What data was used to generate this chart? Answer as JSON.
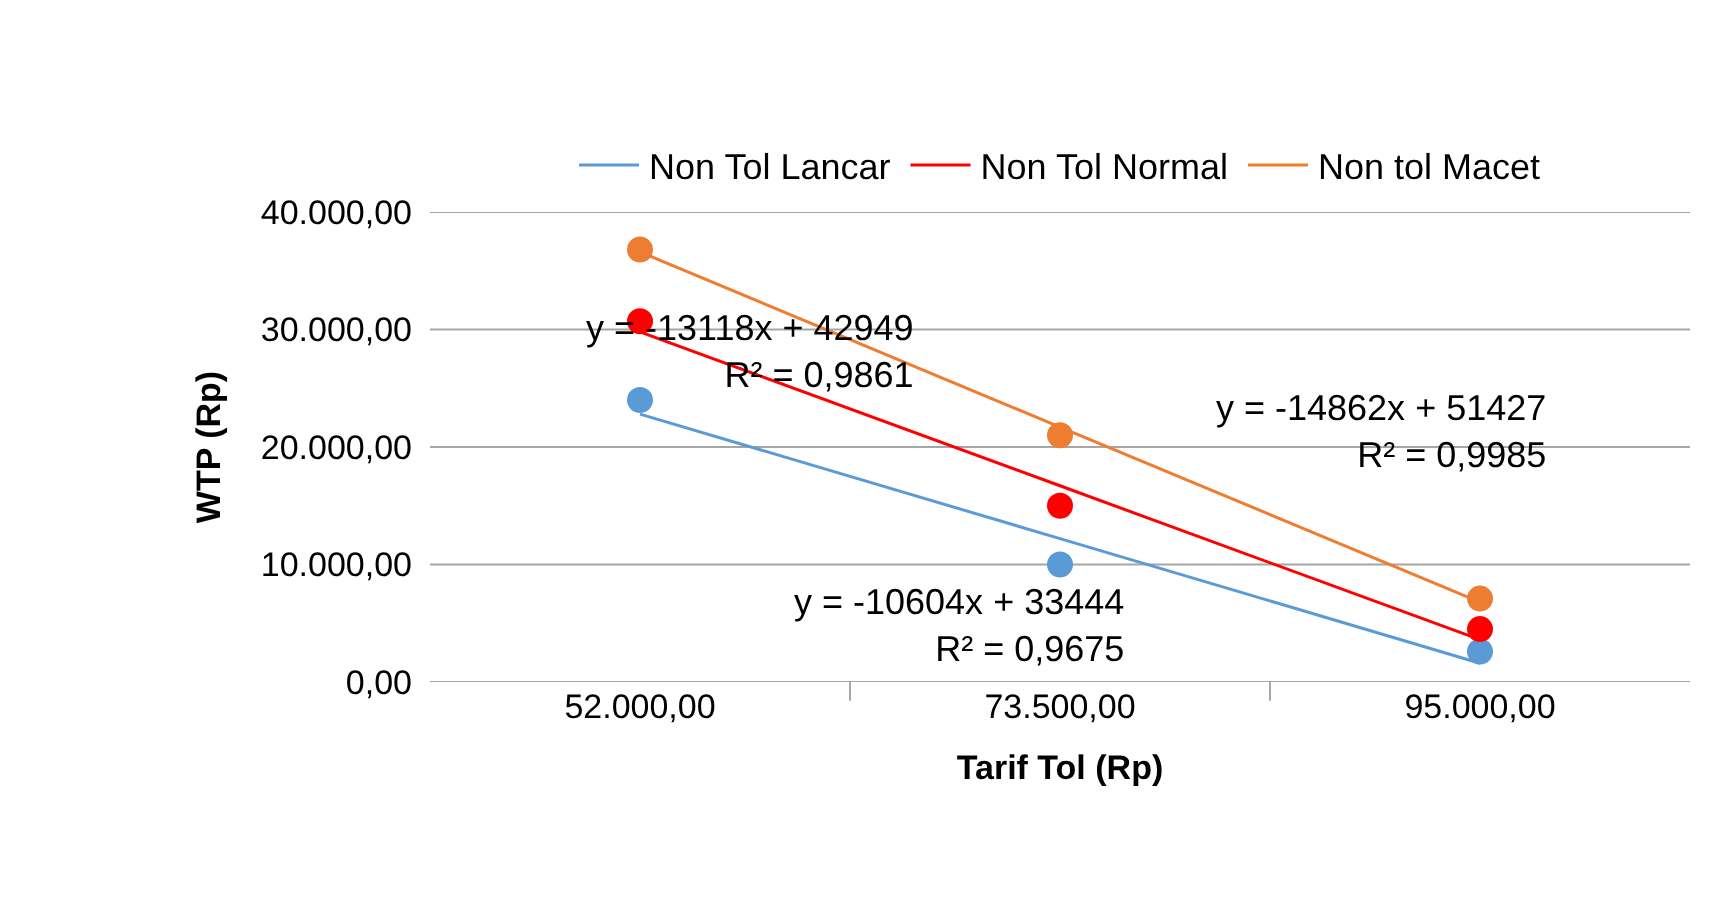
{
  "chart_data": {
    "type": "line",
    "xlabel": "Tarif Tol (Rp)",
    "ylabel": "WTP (Rp)",
    "categories": [
      "52.000,00",
      "73.500,00",
      "95.000,00"
    ],
    "series": [
      {
        "name": "Non Tol Lancar",
        "color": "#5b9bd5",
        "values": [
          22800,
          12200,
          1600
        ],
        "marker": "none"
      },
      {
        "name": "Non Tol Normal",
        "color": "#ff0000",
        "values": [
          29800,
          16700,
          3600
        ],
        "marker": "none"
      },
      {
        "name": "Non tol Macet",
        "color": "#ed7d31",
        "values": [
          36600,
          21700,
          6800
        ],
        "marker": "none"
      },
      {
        "type": "scatter",
        "color": "#5b9bd5",
        "values": [
          24000,
          10000,
          2600
        ],
        "marker": "circle"
      },
      {
        "type": "scatter",
        "color": "#ff0000",
        "values": [
          30700,
          15000,
          4500
        ],
        "marker": "circle"
      },
      {
        "type": "scatter",
        "color": "#ed7d31",
        "values": [
          36800,
          21000,
          7100
        ],
        "marker": "circle"
      }
    ],
    "ylim": [
      0,
      40000
    ],
    "yticks": [
      {
        "value": 0,
        "label": "0,00"
      },
      {
        "value": 10000,
        "label": "10.000,00"
      },
      {
        "value": 20000,
        "label": "20.000,00"
      },
      {
        "value": 30000,
        "label": "30.000,00"
      },
      {
        "value": 40000,
        "label": "40.000,00"
      }
    ],
    "annotations": [
      "y = -10604x + 33444\nR² = 0,9675",
      "y = -13118x + 42949\nR² = 0,9861",
      "y = -14862x + 51427\nR² = 0,9985"
    ],
    "grid": "y",
    "legend": "top",
    "line_style": "solid"
  }
}
